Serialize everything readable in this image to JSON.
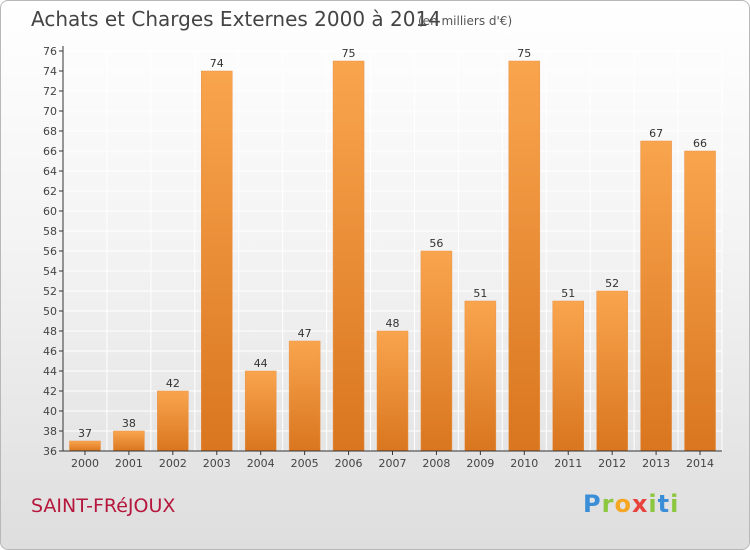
{
  "header": {
    "title": "Achats et Charges Externes 2000 à 2014",
    "subtitle": "(en milliers d'€)"
  },
  "footer": {
    "commune": "SAINT-FRéJOUX",
    "logo": {
      "letters": [
        "P",
        "r",
        "o",
        "x",
        "i",
        "t",
        "i"
      ],
      "colors": [
        "#3a8ed8",
        "#8dc63f",
        "#f5a623",
        "#e8423c",
        "#8dc63f",
        "#3a8ed8",
        "#8dc63f"
      ]
    }
  },
  "colors": {
    "bar_light": "#f9a54e",
    "bar_dark": "#d9761f",
    "axis": "#333333",
    "grid": "#ffffff"
  },
  "chart_data": {
    "type": "bar",
    "title": "Achats et Charges Externes 2000 à 2014",
    "subtitle": "(en milliers d'€)",
    "categories": [
      "2000",
      "2001",
      "2002",
      "2003",
      "2004",
      "2005",
      "2006",
      "2007",
      "2008",
      "2009",
      "2010",
      "2011",
      "2012",
      "2013",
      "2014"
    ],
    "values": [
      37,
      38,
      42,
      74,
      44,
      47,
      75,
      48,
      56,
      51,
      75,
      51,
      52,
      67,
      66
    ],
    "ylim": [
      36,
      76
    ],
    "yticks": [
      36,
      38,
      40,
      42,
      44,
      46,
      48,
      50,
      52,
      54,
      56,
      58,
      60,
      62,
      64,
      66,
      68,
      70,
      72,
      74,
      76
    ],
    "grid": true,
    "data_labels": true
  }
}
